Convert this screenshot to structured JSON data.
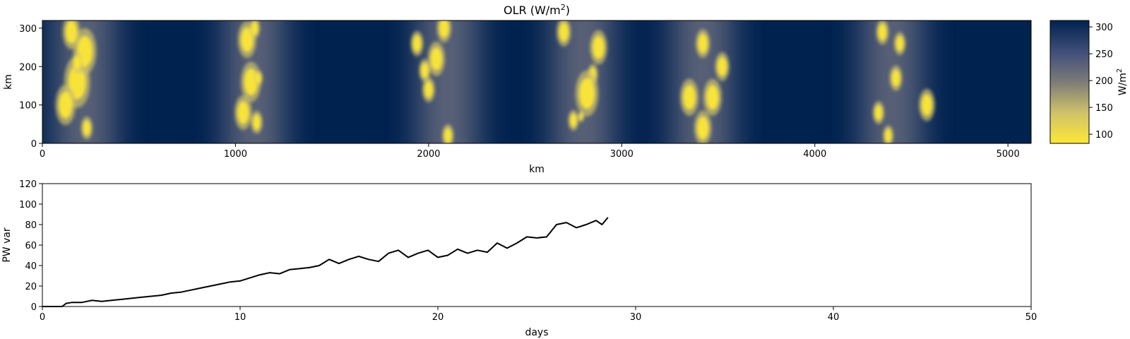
{
  "chart_data": [
    {
      "type": "heatmap",
      "title": "OLR (W/m",
      "title_superscript": "2",
      "title_suffix": ")",
      "xlabel": "km",
      "ylabel": "km",
      "xlim": [
        0,
        5120
      ],
      "ylim": [
        0,
        320
      ],
      "xticks": [
        "0",
        "1000",
        "2000",
        "3000",
        "4000",
        "5000"
      ],
      "yticks": [
        "0",
        "100",
        "200",
        "300"
      ],
      "colormap": "cividis",
      "colormap_stops": [
        "#fde737",
        "#cfc26a",
        "#7c7b78",
        "#3f4d7a",
        "#00224e"
      ],
      "colorbar": {
        "label": "W/m",
        "label_superscript": "2",
        "range": [
          83,
          312
        ],
        "ticks": [
          "100",
          "150",
          "200",
          "250",
          "300"
        ]
      },
      "convective_bands_km": [
        220,
        1100,
        2100,
        2800,
        3420,
        4400
      ],
      "cells": [
        {
          "x": 180,
          "y": 160,
          "r": 45
        },
        {
          "x": 220,
          "y": 240,
          "r": 40
        },
        {
          "x": 150,
          "y": 290,
          "r": 30
        },
        {
          "x": 120,
          "y": 100,
          "r": 35
        },
        {
          "x": 230,
          "y": 40,
          "r": 20
        },
        {
          "x": 180,
          "y": 210,
          "r": 18
        },
        {
          "x": 1060,
          "y": 270,
          "r": 32
        },
        {
          "x": 1080,
          "y": 160,
          "r": 35
        },
        {
          "x": 1040,
          "y": 80,
          "r": 30
        },
        {
          "x": 1110,
          "y": 55,
          "r": 20
        },
        {
          "x": 1100,
          "y": 300,
          "r": 18
        },
        {
          "x": 1120,
          "y": 170,
          "r": 14
        },
        {
          "x": 2080,
          "y": 300,
          "r": 25
        },
        {
          "x": 2000,
          "y": 140,
          "r": 22
        },
        {
          "x": 2100,
          "y": 20,
          "r": 20
        },
        {
          "x": 2040,
          "y": 220,
          "r": 30
        },
        {
          "x": 1940,
          "y": 260,
          "r": 22
        },
        {
          "x": 1980,
          "y": 190,
          "r": 20
        },
        {
          "x": 2850,
          "y": 180,
          "r": 18
        },
        {
          "x": 2820,
          "y": 130,
          "r": 40
        },
        {
          "x": 2880,
          "y": 250,
          "r": 30
        },
        {
          "x": 2750,
          "y": 60,
          "r": 18
        },
        {
          "x": 2700,
          "y": 290,
          "r": 25
        },
        {
          "x": 2790,
          "y": 70,
          "r": 10
        },
        {
          "x": 3350,
          "y": 120,
          "r": 32
        },
        {
          "x": 3470,
          "y": 120,
          "r": 32
        },
        {
          "x": 3420,
          "y": 260,
          "r": 25
        },
        {
          "x": 3420,
          "y": 40,
          "r": 30
        },
        {
          "x": 3520,
          "y": 200,
          "r": 25
        },
        {
          "x": 4440,
          "y": 260,
          "r": 20
        },
        {
          "x": 4420,
          "y": 170,
          "r": 22
        },
        {
          "x": 4580,
          "y": 100,
          "r": 28
        },
        {
          "x": 4330,
          "y": 80,
          "r": 20
        },
        {
          "x": 4350,
          "y": 290,
          "r": 22
        },
        {
          "x": 4380,
          "y": 20,
          "r": 18
        }
      ]
    },
    {
      "type": "line",
      "xlabel": "days",
      "ylabel": "PW var",
      "xlim": [
        0,
        50
      ],
      "ylim": [
        0,
        120
      ],
      "xticks": [
        "0",
        "10",
        "20",
        "30",
        "40",
        "50"
      ],
      "yticks": [
        "0",
        "20",
        "40",
        "60",
        "80",
        "100",
        "120"
      ],
      "color": "#000000",
      "x": [
        0,
        1,
        1.2,
        1.5,
        2.0,
        2.5,
        3.0,
        3.5,
        4.0,
        4.5,
        5.0,
        5.5,
        6.0,
        6.5,
        7.0,
        7.5,
        8.0,
        8.5,
        9.0,
        9.5,
        10.0,
        10.5,
        11.0,
        11.5,
        12.0,
        12.5,
        13.0,
        13.5,
        14.0,
        14.5,
        15.0,
        15.5,
        16.0,
        16.5,
        17.0,
        17.5,
        18.0,
        18.5,
        19.0,
        19.5,
        20.0,
        20.5,
        21.0,
        21.5,
        22.0,
        22.5,
        23.0,
        23.5,
        24.0,
        24.5,
        25.0,
        25.5,
        26.0,
        26.5,
        27.0,
        27.5,
        28.0,
        28.3,
        28.6
      ],
      "y": [
        0,
        0,
        3,
        4,
        4,
        6,
        5,
        6,
        7,
        8,
        9,
        10,
        11,
        13,
        14,
        16,
        18,
        20,
        22,
        24,
        25,
        28,
        31,
        33,
        32,
        36,
        37,
        38,
        40,
        46,
        42,
        46,
        49,
        46,
        44,
        52,
        55,
        48,
        52,
        55,
        48,
        50,
        56,
        52,
        55,
        53,
        62,
        57,
        62,
        68,
        67,
        68,
        80,
        82,
        77,
        80,
        84,
        80,
        87
      ]
    }
  ]
}
